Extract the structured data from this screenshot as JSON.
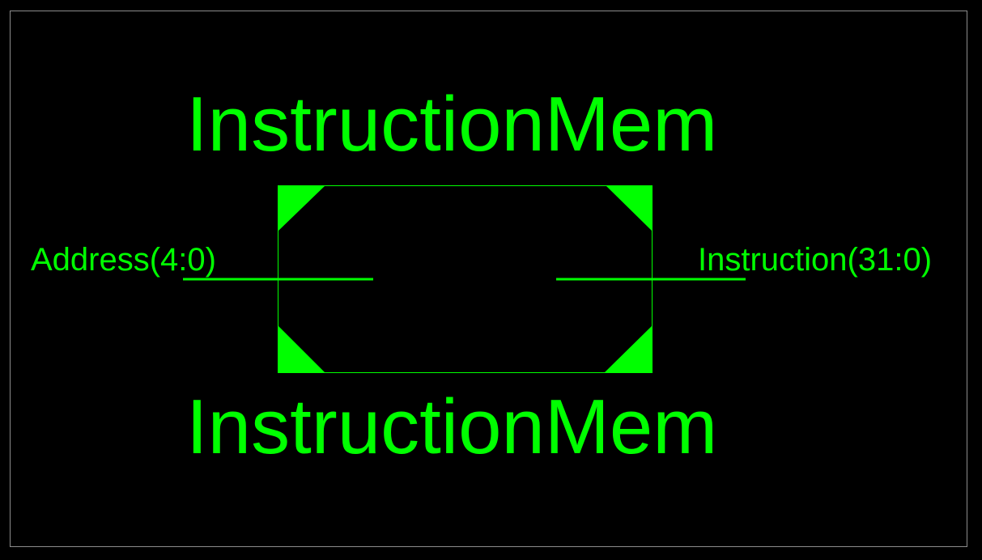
{
  "colors": {
    "background": "#000000",
    "foreground": "#00ff00",
    "frame": "#8c8c8c"
  },
  "symbol": {
    "instance_name": "InstructionMem",
    "type_name": "InstructionMem"
  },
  "pins": {
    "input": {
      "label": "Address(4:0)"
    },
    "output": {
      "label": "Instruction(31:0)"
    }
  }
}
